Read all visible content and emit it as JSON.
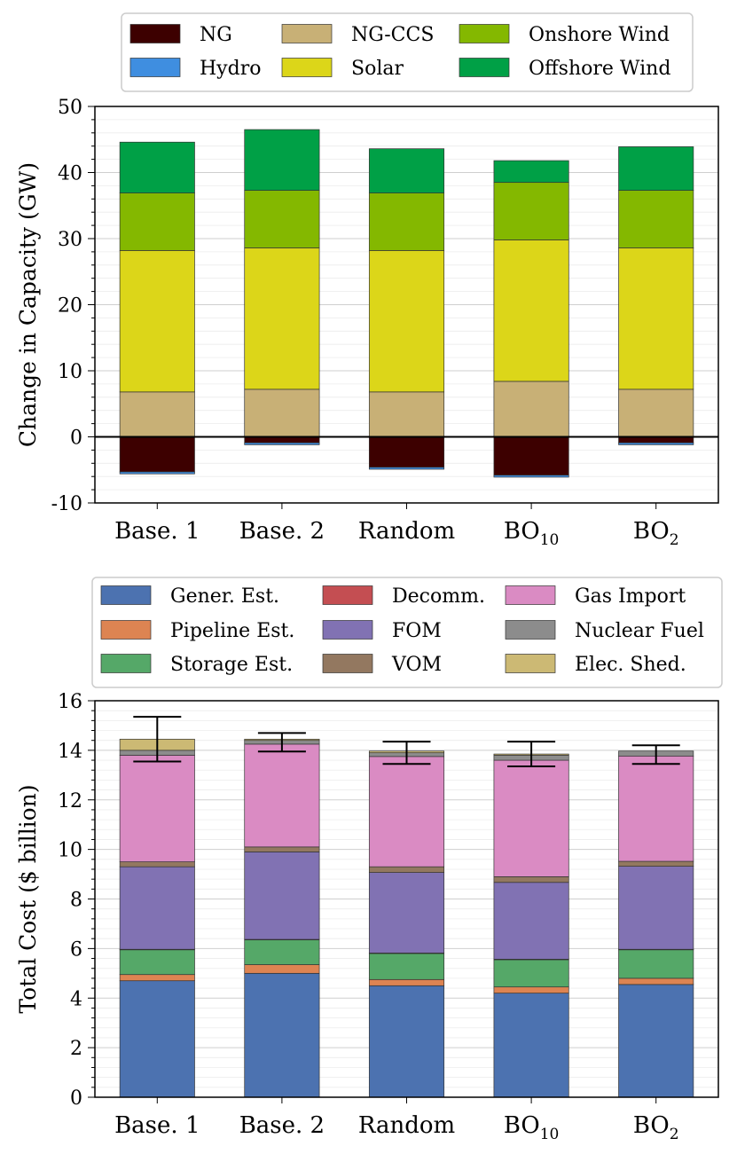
{
  "chart_data": [
    {
      "type": "bar",
      "stacked": true,
      "title": "",
      "xlabel": "",
      "ylabel": "Change in Capacity (GW)",
      "ylim": [
        -10,
        50
      ],
      "yticks": [
        "-10",
        "0",
        "10",
        "20",
        "30",
        "40",
        "50"
      ],
      "grid": "horizontal",
      "legend_position": "top",
      "categories": [
        {
          "label": "Base. 1",
          "base": "Base. 1",
          "sub": ""
        },
        {
          "label": "Base. 2",
          "base": "Base. 2",
          "sub": ""
        },
        {
          "label": "Random",
          "base": "Random",
          "sub": ""
        },
        {
          "label": "BO10",
          "base": "BO",
          "sub": "10"
        },
        {
          "label": "BO2",
          "base": "BO",
          "sub": "2"
        }
      ],
      "legend_order": [
        "NG",
        "NG-CCS",
        "Onshore Wind",
        "Hydro",
        "Solar",
        "Offshore Wind"
      ],
      "series": [
        {
          "name": "NG",
          "color": "#3d0000",
          "values": [
            -5.3,
            -0.9,
            -4.6,
            -5.8,
            -0.9
          ]
        },
        {
          "name": "Hydro",
          "color": "#3f8ee0",
          "values": [
            -0.3,
            -0.3,
            -0.3,
            -0.3,
            -0.3
          ]
        },
        {
          "name": "NG-CCS",
          "color": "#c8b076",
          "values": [
            6.8,
            7.2,
            6.8,
            8.4,
            7.2
          ]
        },
        {
          "name": "Solar",
          "color": "#dcd619",
          "values": [
            21.4,
            21.4,
            21.4,
            21.4,
            21.4
          ]
        },
        {
          "name": "Onshore Wind",
          "color": "#84b800",
          "values": [
            8.7,
            8.7,
            8.7,
            8.7,
            8.7
          ]
        },
        {
          "name": "Offshore Wind",
          "color": "#00a046",
          "values": [
            7.7,
            9.2,
            6.7,
            3.3,
            6.6
          ]
        }
      ]
    },
    {
      "type": "bar",
      "stacked": true,
      "title": "",
      "xlabel": "",
      "ylabel": "Total Cost ($ billion)",
      "ylim": [
        0,
        16
      ],
      "yticks": [
        "0",
        "2",
        "4",
        "6",
        "8",
        "10",
        "12",
        "14",
        "16"
      ],
      "grid": "horizontal",
      "legend_position": "top",
      "categories": [
        {
          "label": "Base. 1",
          "base": "Base. 1",
          "sub": ""
        },
        {
          "label": "Base. 2",
          "base": "Base. 2",
          "sub": ""
        },
        {
          "label": "Random",
          "base": "Random",
          "sub": ""
        },
        {
          "label": "BO10",
          "base": "BO",
          "sub": "10"
        },
        {
          "label": "BO2",
          "base": "BO",
          "sub": "2"
        }
      ],
      "legend_order": [
        "Gener. Est.",
        "Decomm.",
        "Gas Import",
        "Pipeline Est.",
        "FOM",
        "Nuclear Fuel",
        "Storage Est.",
        "VOM",
        "Elec. Shed."
      ],
      "series": [
        {
          "name": "Gener. Est.",
          "color": "#4c72b0",
          "values": [
            4.7,
            5.0,
            4.5,
            4.2,
            4.55
          ]
        },
        {
          "name": "Pipeline Est.",
          "color": "#dd8452",
          "values": [
            0.25,
            0.35,
            0.25,
            0.25,
            0.25
          ]
        },
        {
          "name": "Storage Est.",
          "color": "#55a868",
          "values": [
            1.0,
            1.0,
            1.05,
            1.1,
            1.15
          ]
        },
        {
          "name": "Decomm.",
          "color": "#c44e52",
          "values": [
            0.02,
            0.02,
            0.02,
            0.02,
            0.02
          ]
        },
        {
          "name": "FOM",
          "color": "#8172b3",
          "values": [
            3.33,
            3.53,
            3.25,
            3.1,
            3.35
          ]
        },
        {
          "name": "VOM",
          "color": "#937860",
          "values": [
            0.2,
            0.2,
            0.23,
            0.23,
            0.2
          ]
        },
        {
          "name": "Gas Import",
          "color": "#da8bc3",
          "values": [
            4.3,
            4.15,
            4.45,
            4.7,
            4.25
          ]
        },
        {
          "name": "Nuclear Fuel",
          "color": "#8c8c8c",
          "values": [
            0.2,
            0.15,
            0.15,
            0.2,
            0.2
          ]
        },
        {
          "name": "Elec. Shed.",
          "color": "#ccb974",
          "values": [
            0.45,
            0.05,
            0.07,
            0.05,
            0.0
          ]
        }
      ],
      "error_bars": {
        "center": [
          14.45,
          14.3,
          13.9,
          13.85,
          13.85
        ],
        "low": [
          13.55,
          13.95,
          13.45,
          13.35,
          13.45
        ],
        "high": [
          15.35,
          14.7,
          14.35,
          14.35,
          14.2
        ]
      }
    }
  ]
}
